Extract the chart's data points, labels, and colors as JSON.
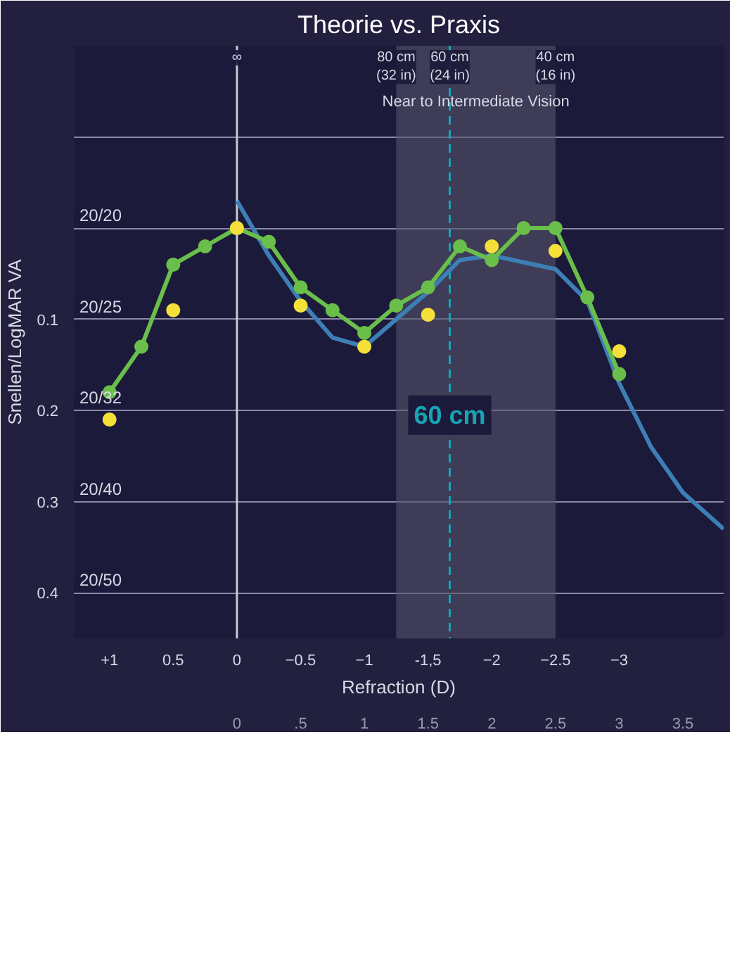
{
  "chart_data": {
    "type": "line",
    "title": "Theorie vs. Praxis",
    "xlabel": "Refraction (D)",
    "ylabel": "Snellen/LogMAR VA",
    "annotations": [
      {
        "text": "∞",
        "x": 0
      },
      {
        "text": "80 cm\n(32 in)",
        "x": -1.25
      },
      {
        "text": "60 cm\n(24 in)",
        "x": -1.67
      },
      {
        "text": "40 cm\n(16 in)",
        "x": -2.5
      },
      "20/20",
      "20/25",
      "20/32",
      "20/40",
      "20/50"
    ],
    "xlim": [
      1.28,
      -3.82
    ],
    "xticks": [
      {
        "value": 1,
        "label": "+1"
      },
      0.5,
      0,
      -0.5,
      -1,
      {
        "value": -1.5,
        "label": "-1,5"
      },
      -2,
      -2.5,
      -3
    ],
    "x2lim": [
      -1.28,
      3.82
    ],
    "x2ticks": [
      0,
      {
        "value": 0.5,
        "label": ".5"
      },
      1,
      1.5,
      2,
      2.5,
      3,
      3.5
    ],
    "ylim": [
      0.45,
      -0.2
    ],
    "yticks": [
      {
        "value": -0.1,
        "label": null
      },
      {
        "value": 0,
        "label": null
      },
      0.1,
      0.2,
      0.3,
      0.4
    ],
    "grid": "y",
    "bands": [
      {
        "axis": "x",
        "from": -1.25,
        "to": -2.5,
        "color": "#55536a",
        "label": "Near to Intermediate Vision"
      }
    ],
    "ref_lines": [
      {
        "axis": "x",
        "value": 0,
        "color": "#c8c8d8",
        "line_style": "solid"
      },
      {
        "axis": "x",
        "value": -1.67,
        "label": "60 cm",
        "color": "#17a5b5",
        "line_style": "dashed"
      }
    ],
    "series": [
      {
        "type": "line",
        "marker": "none",
        "color": "#3d7fb5",
        "x": [
          0,
          -0.25,
          -0.5,
          -0.75,
          -1,
          -1.25,
          -1.5,
          -1.75,
          -2,
          -2.5,
          -2.75,
          -3,
          -3.25,
          -3.5,
          -3.82
        ],
        "values": [
          -0.03,
          0.03,
          0.08,
          0.12,
          0.13,
          0.1,
          0.07,
          0.035,
          0.03,
          0.045,
          0.08,
          0.17,
          0.24,
          0.29,
          0.33
        ]
      },
      {
        "type": "line",
        "marker": "circle",
        "color": "#6abf4b",
        "x": [
          1,
          0.75,
          0.5,
          0.25,
          0,
          -0.25,
          -0.5,
          -0.75,
          -1,
          -1.25,
          -1.5,
          -1.75,
          -2,
          -2.25,
          -2.5,
          -2.75,
          -3
        ],
        "values": [
          0.18,
          0.13,
          0.04,
          0.02,
          0.0,
          0.015,
          0.065,
          0.09,
          0.115,
          0.085,
          0.065,
          0.02,
          0.035,
          0.0,
          0.0,
          0.076,
          0.16
        ]
      },
      {
        "type": "scatter",
        "marker": "circle",
        "color": "#f5e03a",
        "x": [
          1,
          0.5,
          0,
          -0.5,
          -1,
          -1.5,
          -2,
          -2.5,
          -3
        ],
        "values": [
          0.21,
          0.09,
          0.0,
          0.085,
          0.13,
          0.095,
          0.02,
          0.025,
          0.135
        ]
      }
    ]
  }
}
